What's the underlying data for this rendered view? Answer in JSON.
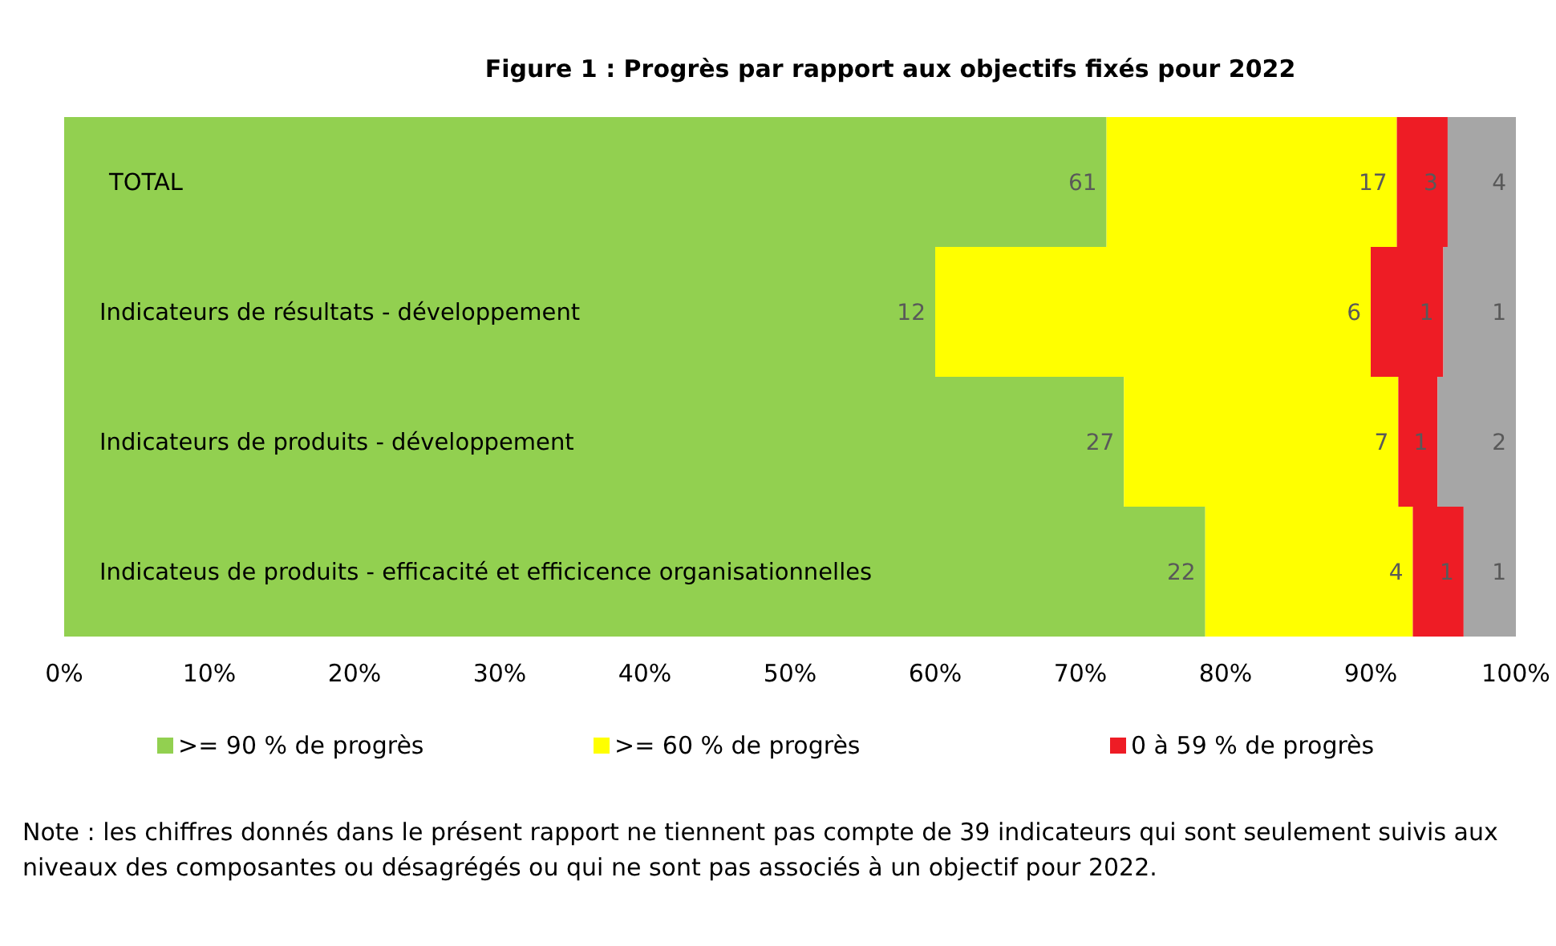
{
  "chart_data": {
    "type": "bar",
    "orientation": "horizontal",
    "stacked": true,
    "title": "Figure 1 : Progrès par rapport aux objectifs fixés pour 2022",
    "categories": [
      "TOTAL",
      "Indicateurs de résultats - développement",
      "Indicateurs de produits - développement",
      "Indicateus de produits - efficacité et efficicence organisationnelles"
    ],
    "series": [
      {
        "name": ">= 90 % de progrès",
        "color": "#92d050",
        "values": [
          71.8,
          60.0,
          73.0,
          78.6
        ]
      },
      {
        "name": ">= 60 % de progrès",
        "color": "#ffff00",
        "values": [
          20.0,
          30.0,
          18.9,
          14.3
        ]
      },
      {
        "name": "0 à 59 % de progrès",
        "color": "#ee1c25",
        "values": [
          3.5,
          5.0,
          2.7,
          3.5
        ]
      },
      {
        "color": "#a6a6a6",
        "values": [
          4.7,
          5.0,
          5.4,
          3.6
        ]
      }
    ],
    "xlim": [
      0,
      100
    ],
    "xticks": [
      {
        "value": 0,
        "label": "0%"
      },
      {
        "value": 10,
        "label": "10%"
      },
      {
        "value": 20,
        "label": "20%"
      },
      {
        "value": 30,
        "label": "30%"
      },
      {
        "value": 40,
        "label": "40%"
      },
      {
        "value": 50,
        "label": "50%"
      },
      {
        "value": 60,
        "label": "60%"
      },
      {
        "value": 70,
        "label": "70%"
      },
      {
        "value": 80,
        "label": "80%"
      },
      {
        "value": 90,
        "label": "90%"
      },
      {
        "value": 100,
        "label": "100%"
      }
    ],
    "grid": false,
    "legend": "bottom",
    "annotations": [
      {
        "text": "61",
        "x": 71.8,
        "y": "TOTAL"
      },
      {
        "text": "17",
        "x": 91.8,
        "y": "TOTAL"
      },
      {
        "text": "3",
        "x": 95.3,
        "y": "TOTAL"
      },
      {
        "text": "4",
        "x": 100,
        "y": "TOTAL"
      },
      {
        "text": "12",
        "x": 60.0,
        "y": "Indicateurs de résultats - développement"
      },
      {
        "text": "6",
        "x": 90.0,
        "y": "Indicateurs de résultats - développement"
      },
      {
        "text": "1",
        "x": 95.0,
        "y": "Indicateurs de résultats - développement"
      },
      {
        "text": "1",
        "x": 100,
        "y": "Indicateurs de résultats - développement"
      },
      {
        "text": "27",
        "x": 73.0,
        "y": "Indicateurs de produits - développement"
      },
      {
        "text": "7",
        "x": 91.9,
        "y": "Indicateurs de produits - développement"
      },
      {
        "text": "1",
        "x": 94.6,
        "y": "Indicateurs de produits - développement"
      },
      {
        "text": "2",
        "x": 100,
        "y": "Indicateurs de produits - développement"
      },
      {
        "text": "22",
        "x": 78.6,
        "y": "Indicateus de produits - efficacité et efficicence organisationnelles"
      },
      {
        "text": "4",
        "x": 92.9,
        "y": "Indicateus de produits - efficacité et efficicence organisationnelles"
      },
      {
        "text": "1",
        "x": 96.4,
        "y": "Indicateus de produits - efficacité et efficicence organisationnelles"
      },
      {
        "text": "1",
        "x": 100,
        "y": "Indicateus de produits - efficacité et efficicence organisationnelles"
      },
      "Note : les chiffres donnés dans le présent rapport ne tiennent pas compte de 39 indicateurs qui sont seulement suivis aux niveaux des composantes ou désagrégés ou qui ne sont pas associés à un objectif pour 2022."
    ]
  }
}
